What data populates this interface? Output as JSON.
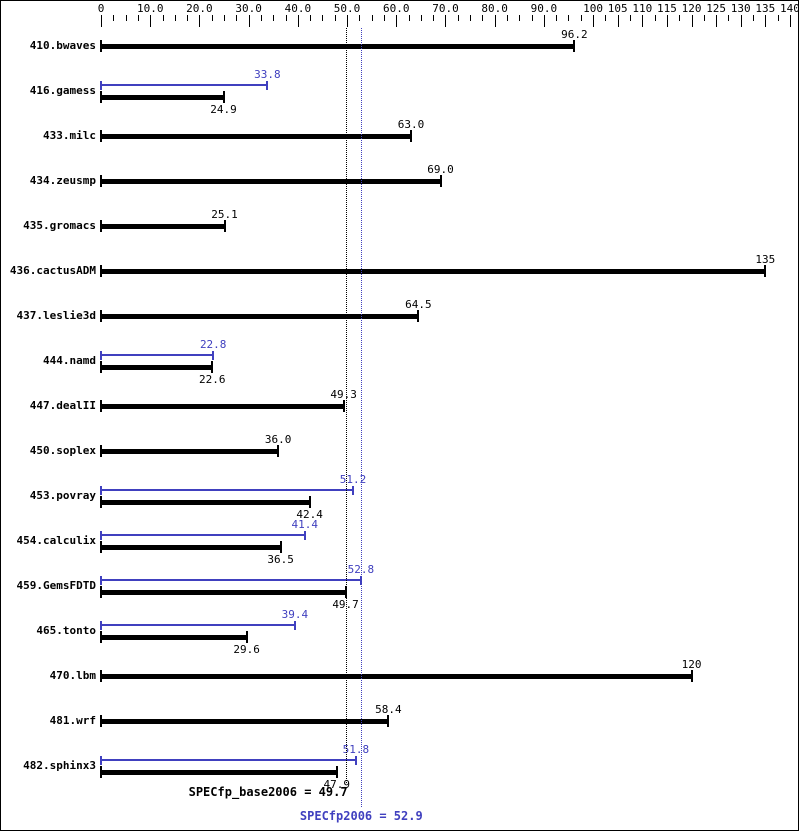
{
  "colors": {
    "base": "#000000",
    "peak": "#4040bf",
    "background": "#ffffff",
    "border": "#000000"
  },
  "chart_data": {
    "type": "bar",
    "orientation": "horizontal",
    "title": "",
    "axis": {
      "position": "top",
      "range": [
        0,
        140
      ],
      "minor_step": 2.5,
      "ticks": [
        {
          "value": 0,
          "label": "0"
        },
        {
          "value": 10,
          "label": "10.0"
        },
        {
          "value": 20,
          "label": "20.0"
        },
        {
          "value": 30,
          "label": "30.0"
        },
        {
          "value": 40,
          "label": "40.0"
        },
        {
          "value": 50,
          "label": "50.0"
        },
        {
          "value": 60,
          "label": "60.0"
        },
        {
          "value": 70,
          "label": "70.0"
        },
        {
          "value": 80,
          "label": "80.0"
        },
        {
          "value": 90,
          "label": "90.0"
        },
        {
          "value": 100,
          "label": "100"
        },
        {
          "value": 105,
          "label": "105"
        },
        {
          "value": 110,
          "label": "110"
        },
        {
          "value": 115,
          "label": "115"
        },
        {
          "value": 120,
          "label": "120"
        },
        {
          "value": 125,
          "label": "125"
        },
        {
          "value": 130,
          "label": "130"
        },
        {
          "value": 135,
          "label": "135"
        },
        {
          "value": 140,
          "label": "140"
        }
      ]
    },
    "series_legend": {
      "base_color_meaning": "base result (black)",
      "peak_color_meaning": "peak result (blue)"
    },
    "benchmarks": [
      {
        "name": "410.bwaves",
        "base": 96.2,
        "base_label": "96.2"
      },
      {
        "name": "416.gamess",
        "base": 24.9,
        "base_label": "24.9",
        "peak": 33.8,
        "peak_label": "33.8"
      },
      {
        "name": "433.milc",
        "base": 63.0,
        "base_label": "63.0"
      },
      {
        "name": "434.zeusmp",
        "base": 69.0,
        "base_label": "69.0"
      },
      {
        "name": "435.gromacs",
        "base": 25.1,
        "base_label": "25.1"
      },
      {
        "name": "436.cactusADM",
        "base": 135,
        "base_label": "135"
      },
      {
        "name": "437.leslie3d",
        "base": 64.5,
        "base_label": "64.5"
      },
      {
        "name": "444.namd",
        "base": 22.6,
        "base_label": "22.6",
        "peak": 22.8,
        "peak_label": "22.8"
      },
      {
        "name": "447.dealII",
        "base": 49.3,
        "base_label": "49.3"
      },
      {
        "name": "450.soplex",
        "base": 36.0,
        "base_label": "36.0"
      },
      {
        "name": "453.povray",
        "base": 42.4,
        "base_label": "42.4",
        "peak": 51.2,
        "peak_label": "51.2"
      },
      {
        "name": "454.calculix",
        "base": 36.5,
        "base_label": "36.5",
        "peak": 41.4,
        "peak_label": "41.4"
      },
      {
        "name": "459.GemsFDTD",
        "base": 49.7,
        "base_label": "49.7",
        "peak": 52.8,
        "peak_label": "52.8"
      },
      {
        "name": "465.tonto",
        "base": 29.6,
        "base_label": "29.6",
        "peak": 39.4,
        "peak_label": "39.4"
      },
      {
        "name": "470.lbm",
        "base": 120,
        "base_label": "120"
      },
      {
        "name": "481.wrf",
        "base": 58.4,
        "base_label": "58.4"
      },
      {
        "name": "482.sphinx3",
        "base": 47.9,
        "base_label": "47.9",
        "peak": 51.8,
        "peak_label": "51.8"
      }
    ],
    "means": {
      "base": {
        "value": 49.7,
        "label": "SPECfp_base2006 = 49.7"
      },
      "peak": {
        "value": 52.9,
        "label": "SPECfp2006 = 52.9"
      }
    }
  }
}
